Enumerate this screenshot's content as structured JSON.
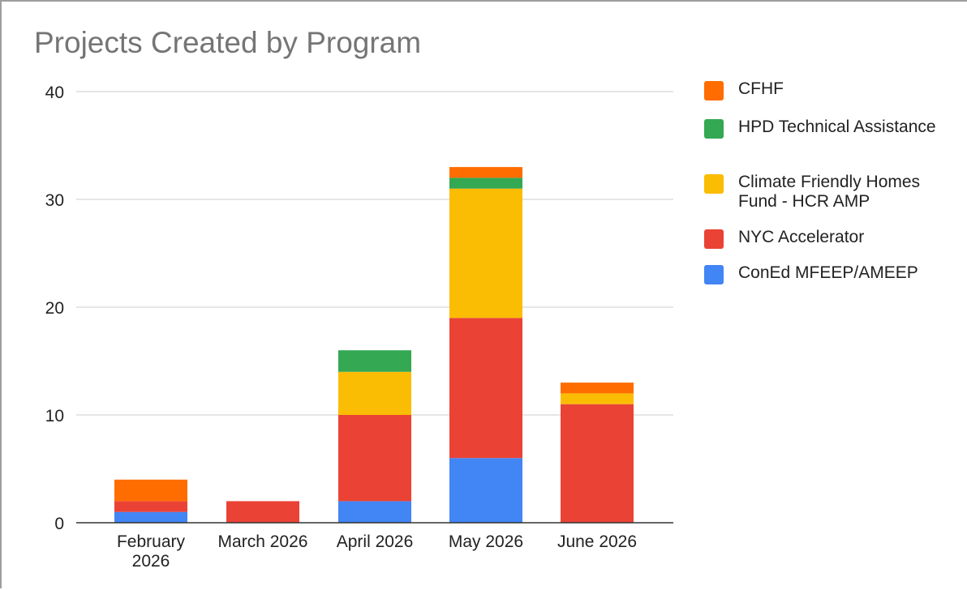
{
  "chart_data": {
    "type": "bar",
    "stacked": true,
    "title": "Projects Created by Program",
    "xlabel": "",
    "ylabel": "",
    "ylim": [
      0,
      40
    ],
    "yticks": [
      "0",
      "10",
      "20",
      "30",
      "40"
    ],
    "grid": true,
    "legend_position": "right",
    "categories": [
      "February 2026",
      "March 2026",
      "April 2026",
      "May 2026",
      "June 2026"
    ],
    "series": [
      {
        "name": "ConEd MFEEP/AMEEP",
        "color": "#4285f4",
        "values": [
          1,
          0,
          2,
          6,
          0
        ]
      },
      {
        "name": "NYC Accelerator",
        "color": "#ea4335",
        "values": [
          1,
          2,
          8,
          13,
          11
        ]
      },
      {
        "name": "Climate Friendly Homes Fund - HCR AMP",
        "color": "#fbbc04",
        "values": [
          0,
          0,
          4,
          12,
          1
        ]
      },
      {
        "name": "HPD Technical Assistance",
        "color": "#34a853",
        "values": [
          0,
          0,
          2,
          1,
          0
        ]
      },
      {
        "name": "CFHF",
        "color": "#ff6d01",
        "values": [
          2,
          0,
          0,
          1,
          1
        ]
      }
    ]
  }
}
